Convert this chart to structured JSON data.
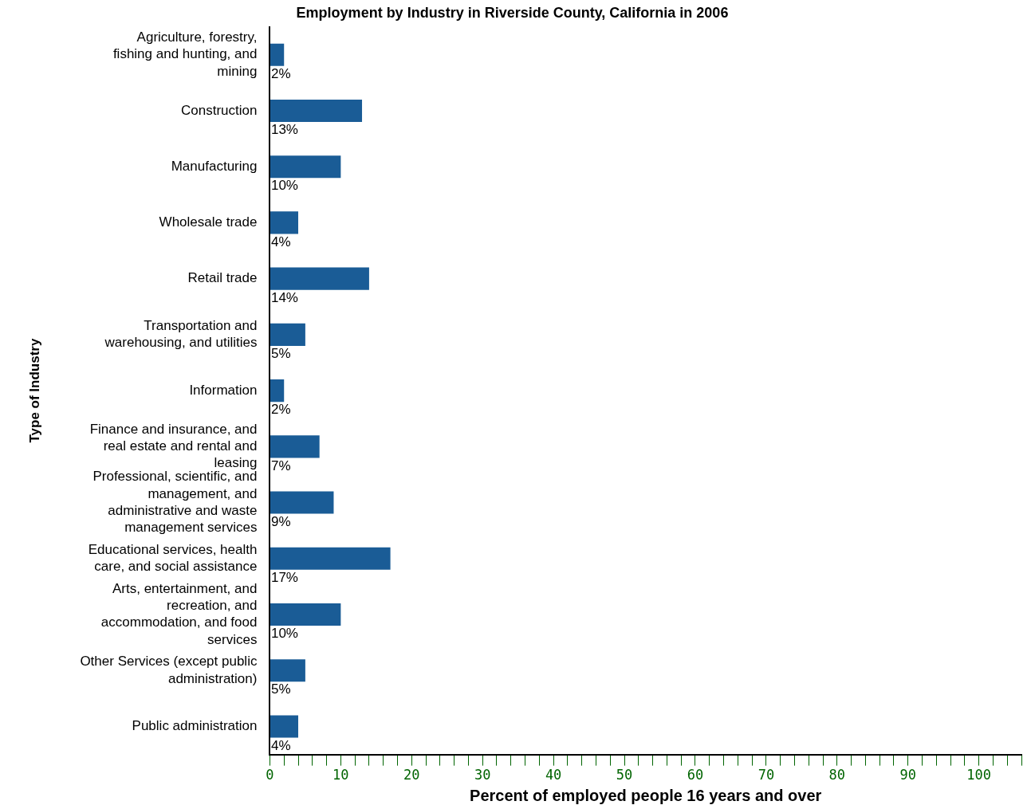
{
  "chart_data": {
    "type": "bar",
    "orientation": "horizontal",
    "title": "Employment by Industry in Riverside County, California in 2006",
    "xlabel": "Percent of employed people 16 years and over",
    "ylabel": "Type of Industry",
    "categories": [
      "Agriculture, forestry, fishing and hunting, and mining",
      "Construction",
      "Manufacturing",
      "Wholesale trade",
      "Retail trade",
      "Transportation and warehousing, and utilities",
      "Information",
      "Finance and insurance, and real estate and rental and leasing",
      "Professional, scientific, and management, and administrative and waste management services",
      "Educational services, health care, and social assistance",
      "Arts, entertainment, and recreation, and accommodation, and food services",
      "Other Services (except public administration)",
      "Public administration"
    ],
    "values": [
      2,
      13,
      10,
      4,
      14,
      5,
      2,
      7,
      9,
      17,
      10,
      5,
      4
    ],
    "value_labels": [
      "2%",
      "13%",
      "10%",
      "4%",
      "14%",
      "5%",
      "2%",
      "7%",
      "9%",
      "17%",
      "10%",
      "5%",
      "4%"
    ],
    "color": "#1a5c96",
    "xlim": [
      0,
      106
    ],
    "xticks": [
      0,
      {
        "value": 2,
        "label": null
      },
      {
        "value": 4,
        "label": null
      },
      {
        "value": 6,
        "label": null
      },
      {
        "value": 8,
        "label": null
      },
      10,
      {
        "value": 12,
        "label": null
      },
      {
        "value": 14,
        "label": null
      },
      {
        "value": 16,
        "label": null
      },
      {
        "value": 18,
        "label": null
      },
      20,
      {
        "value": 22,
        "label": null
      },
      {
        "value": 24,
        "label": null
      },
      {
        "value": 26,
        "label": null
      },
      {
        "value": 28,
        "label": null
      },
      30,
      {
        "value": 32,
        "label": null
      },
      {
        "value": 34,
        "label": null
      },
      {
        "value": 36,
        "label": null
      },
      {
        "value": 38,
        "label": null
      },
      40,
      {
        "value": 42,
        "label": null
      },
      {
        "value": 44,
        "label": null
      },
      {
        "value": 46,
        "label": null
      },
      {
        "value": 48,
        "label": null
      },
      50,
      {
        "value": 52,
        "label": null
      },
      {
        "value": 54,
        "label": null
      },
      {
        "value": 56,
        "label": null
      },
      {
        "value": 58,
        "label": null
      },
      60,
      {
        "value": 62,
        "label": null
      },
      {
        "value": 64,
        "label": null
      },
      {
        "value": 66,
        "label": null
      },
      {
        "value": 68,
        "label": null
      },
      70,
      {
        "value": 72,
        "label": null
      },
      {
        "value": 74,
        "label": null
      },
      {
        "value": 76,
        "label": null
      },
      {
        "value": 78,
        "label": null
      },
      80,
      {
        "value": 82,
        "label": null
      },
      {
        "value": 84,
        "label": null
      },
      {
        "value": 86,
        "label": null
      },
      {
        "value": 88,
        "label": null
      },
      90,
      {
        "value": 92,
        "label": null
      },
      {
        "value": 94,
        "label": null
      },
      {
        "value": 96,
        "label": null
      },
      {
        "value": 98,
        "label": null
      },
      100,
      {
        "value": 102,
        "label": null
      },
      {
        "value": 104,
        "label": null
      },
      {
        "value": 106,
        "label": null
      }
    ],
    "grid": false,
    "legend": false
  }
}
